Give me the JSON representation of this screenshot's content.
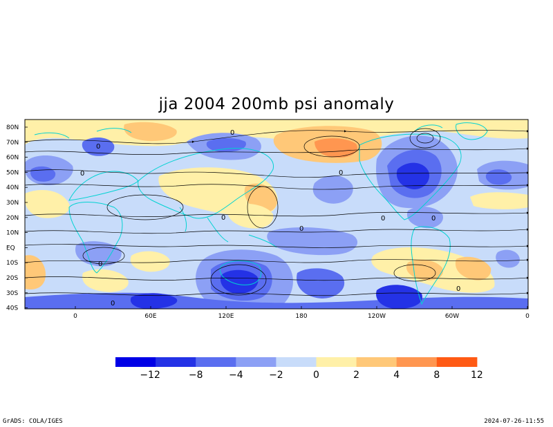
{
  "title": "jja 2004 200mb psi anomaly",
  "map": {
    "lat_labels": [
      "80N",
      "70N",
      "60N",
      "50N",
      "40N",
      "30N",
      "20N",
      "10N",
      "EQ",
      "10S",
      "20S",
      "30S",
      "40S"
    ],
    "lon_labels": [
      "0",
      "60E",
      "120E",
      "180",
      "120W",
      "60W",
      "0"
    ],
    "contour_zero_label": "0"
  },
  "colorbar": {
    "colors": [
      "#0000e6",
      "#2432e6",
      "#5a6ef0",
      "#8ca0f5",
      "#c8dcfa",
      "#fff0a8",
      "#ffc878",
      "#ff9650",
      "#ff5a14"
    ],
    "tick_labels": [
      "−12",
      "−8",
      "−4",
      "−2",
      "0",
      "2",
      "4",
      "8",
      "12"
    ]
  },
  "colors": {
    "coastline": "#00d2d2",
    "streamline": "#000000"
  },
  "footer": {
    "left": "GrADS: COLA/IGES",
    "right": "2024-07-26-11:55"
  }
}
